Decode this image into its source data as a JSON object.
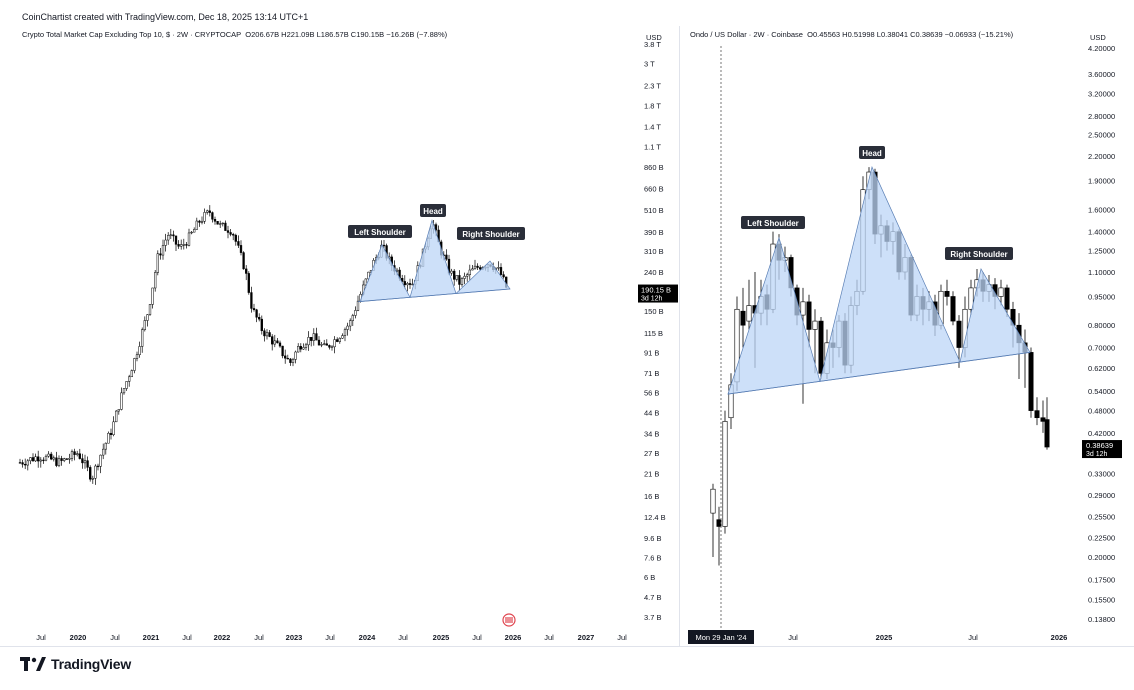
{
  "header": {
    "credit": "CoinChartist created with TradingView.com, Dec 18, 2025 13:14 UTC+1"
  },
  "footer": {
    "brand": "TradingView"
  },
  "colors": {
    "up": "#ffffff",
    "down": "#000000",
    "pattern_fill": "#bcd6f7",
    "pattern_stroke": "#5a7fb5",
    "label_bg": "#2a2e39"
  },
  "chart_data": [
    {
      "type": "candlestick",
      "title": "Crypto Total Market Cap Excluding Top 10, $ · 2W · CRYPTOCAP",
      "ohlc_text": "O206.67B H221.09B L186.57B C190.15B −16.26B (−7.88%)",
      "currency": "USD",
      "y_scale": "log",
      "y_ticks": [
        "3.8 T",
        "3 T",
        "2.3 T",
        "1.8 T",
        "1.4 T",
        "1.1 T",
        "860 B",
        "660 B",
        "510 B",
        "390 B",
        "310 B",
        "240 B",
        "150 B",
        "115 B",
        "91 B",
        "71 B",
        "56 B",
        "44 B",
        "34 B",
        "27 B",
        "21 B",
        "16 B",
        "12.4 B",
        "9.6 B",
        "7.6 B",
        "6 B",
        "4.7 B",
        "3.7 B"
      ],
      "y_tick_values_billions": [
        3800,
        3000,
        2300,
        1800,
        1400,
        1100,
        860,
        660,
        510,
        390,
        310,
        240,
        150,
        115,
        91,
        71,
        56,
        44,
        34,
        27,
        21,
        16,
        12.4,
        9.6,
        7.6,
        6,
        4.7,
        3.7
      ],
      "x_ticks": [
        "Jul",
        "2020",
        "Jul",
        "2021",
        "Jul",
        "2022",
        "Jul",
        "2023",
        "Jul",
        "2024",
        "Jul",
        "2025",
        "Jul",
        "2026",
        "Jul",
        "2027",
        "Jul"
      ],
      "last_price": {
        "value": "190.15 B",
        "countdown": "3d 12h"
      },
      "pattern_labels": [
        "Left Shoulder",
        "Head",
        "Right Shoulder"
      ],
      "neckline_approx_billions": [
        170,
        195
      ]
    },
    {
      "type": "candlestick",
      "title": "Ondo / US Dollar · 2W · Coinbase",
      "ohlc_text": "O0.45563 H0.51998 L0.38041 C0.38639 −0.06933 (−15.21%)",
      "currency": "USD",
      "y_scale": "log",
      "y_ticks": [
        "4.20000",
        "3.60000",
        "3.20000",
        "2.80000",
        "2.50000",
        "2.20000",
        "1.90000",
        "1.60000",
        "1.40000",
        "1.25000",
        "1.10000",
        "0.95000",
        "0.80000",
        "0.70000",
        "0.62000",
        "0.54000",
        "0.48000",
        "0.42000",
        "0.33000",
        "0.29000",
        "0.25500",
        "0.22500",
        "0.20000",
        "0.17500",
        "0.15500",
        "0.13800"
      ],
      "y_tick_values": [
        4.2,
        3.6,
        3.2,
        2.8,
        2.5,
        2.2,
        1.9,
        1.6,
        1.4,
        1.25,
        1.1,
        0.95,
        0.8,
        0.7,
        0.62,
        0.54,
        0.48,
        0.42,
        0.33,
        0.29,
        0.255,
        0.225,
        0.2,
        0.175,
        0.155,
        0.138
      ],
      "x_ticks": [
        "Jul",
        "2025",
        "Jul",
        "2026"
      ],
      "crosshair_date": "Mon 29 Jan '24",
      "last_price": {
        "value": "0.38639",
        "countdown": "3d 12h"
      },
      "pattern_labels": [
        "Left Shoulder",
        "Head",
        "Right Shoulder"
      ],
      "neckline_approx": [
        0.53,
        0.68
      ],
      "peaks_approx": {
        "left_shoulder": 1.35,
        "head": 2.06,
        "right_shoulder": 1.12
      }
    }
  ]
}
